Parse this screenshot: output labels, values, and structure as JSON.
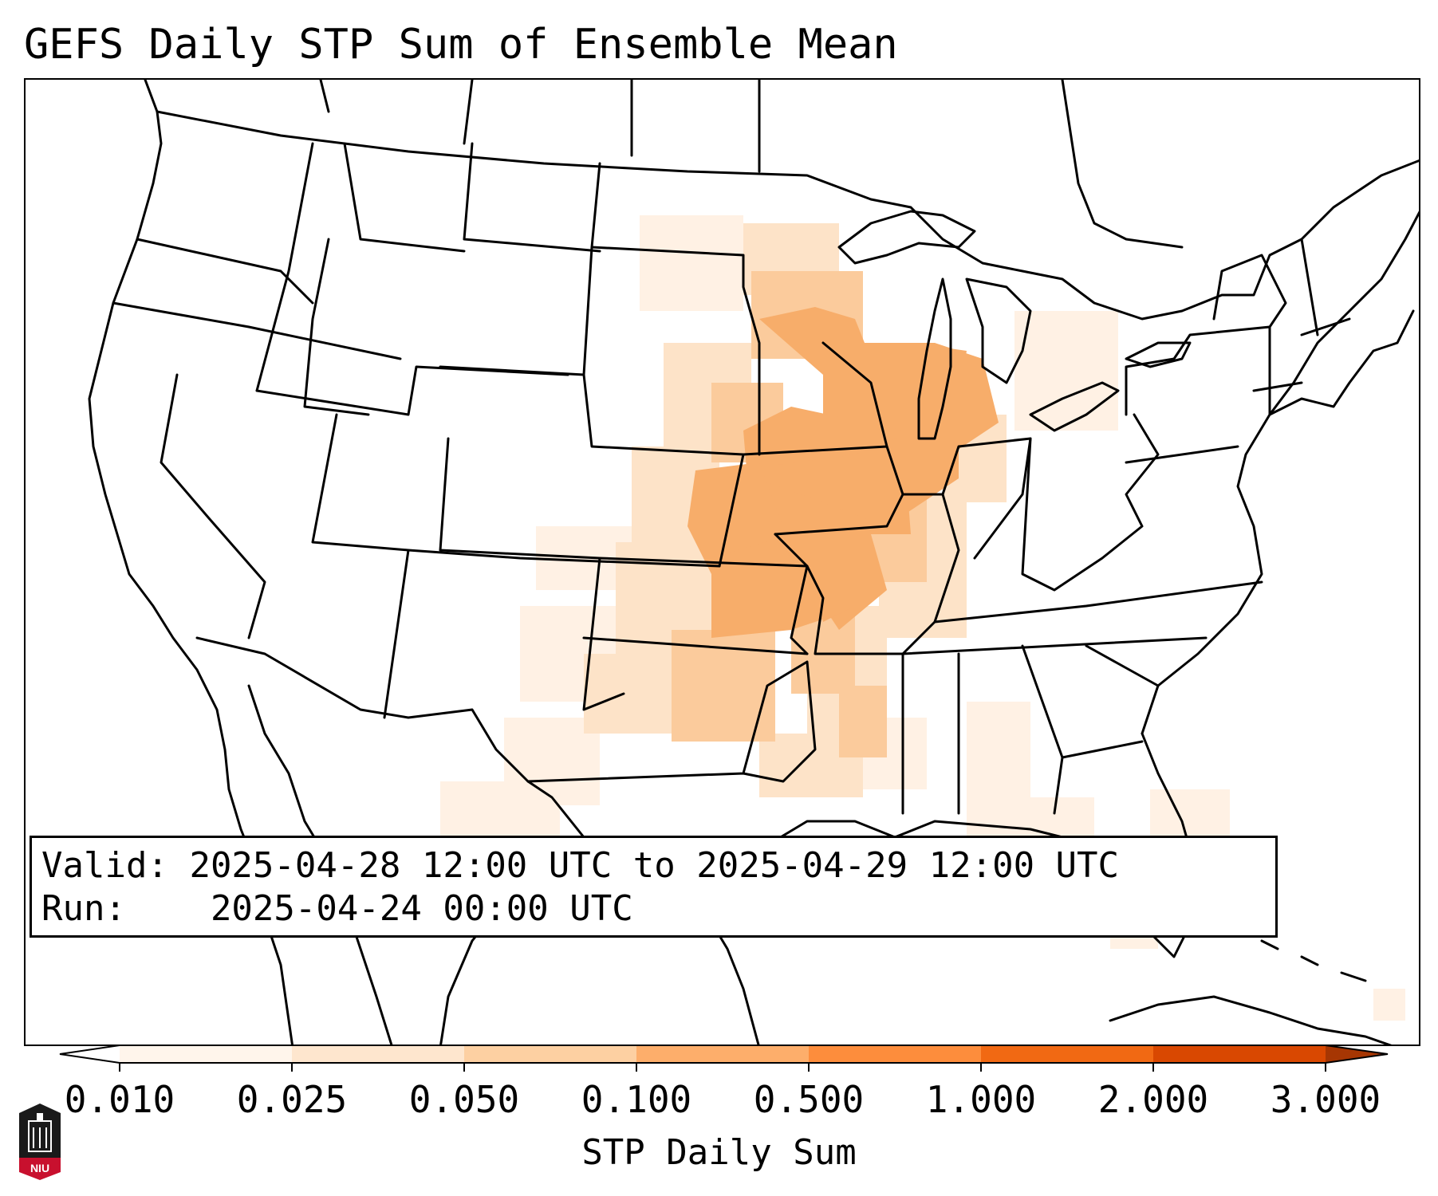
{
  "title": "GEFS Daily STP Sum of Ensemble Mean",
  "info": {
    "valid_label": "Valid:",
    "valid_value": "2025-04-28 12:00 UTC to 2025-04-29 12:00 UTC",
    "run_label": "Run:",
    "run_value": "2025-04-24 00:00 UTC"
  },
  "colorbar": {
    "label": "STP Daily Sum",
    "ticks": [
      "0.010",
      "0.025",
      "0.050",
      "0.100",
      "0.500",
      "1.000",
      "2.000",
      "3.000"
    ],
    "colors": [
      "#fff5eb",
      "#fee6ce",
      "#fdd0a2",
      "#fdae6b",
      "#fd8d3c",
      "#f16913",
      "#d94801",
      "#a63603"
    ],
    "extend": "both"
  },
  "logo": {
    "text": "NIU",
    "icon": "niu-logo-icon",
    "color": "#c8102e"
  },
  "colors": {
    "low": "#fff1e4",
    "light": "#fde3c8",
    "mid": "#fbcb9c",
    "high": "#f7ad6a"
  }
}
